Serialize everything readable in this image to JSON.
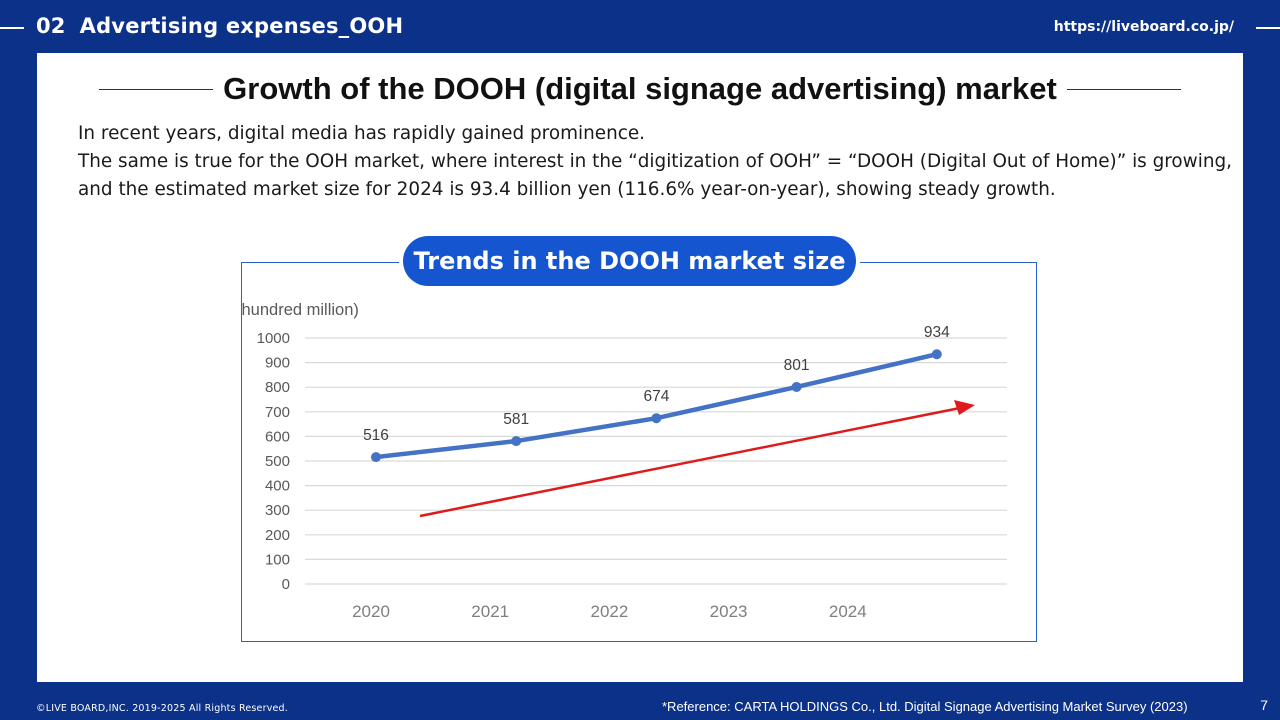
{
  "header": {
    "section_number": "02",
    "section_title": "Advertising expenses_OOH",
    "url": "https://liveboard.co.jp/"
  },
  "main": {
    "heading": "Growth of the DOOH (digital signage advertising) market",
    "paragraphs": [
      "In recent years, digital media has rapidly gained prominence.",
      "The same is true for the OOH market, where interest in the “digitization of OOH” = “DOOH (Digital Out of Home)” is growing,",
      "and the estimated market size for 2024 is 93.4 billion yen (116.6% year-on-year), showing steady growth."
    ],
    "chart_title": "Trends in the DOOH market size"
  },
  "chart_data": {
    "type": "line",
    "title": "Trends in the DOOH market size",
    "ylabel": "(hundred million)",
    "xlabel": "",
    "categories": [
      "2020",
      "2021",
      "2022",
      "2023",
      "2024"
    ],
    "series": [
      {
        "name": "DOOH market size",
        "values": [
          516,
          581,
          674,
          801,
          934
        ],
        "color": "#4472c4"
      }
    ],
    "data_labels": [
      "516",
      "581",
      "674",
      "801",
      "934"
    ],
    "yticks": [
      "0",
      "100",
      "200",
      "300",
      "400",
      "500",
      "600",
      "700",
      "800",
      "900",
      "1000"
    ],
    "ylim": [
      0,
      1000
    ],
    "grid": true,
    "annotations": [
      {
        "type": "trend-arrow",
        "color": "#e01a1a"
      }
    ]
  },
  "footer": {
    "copyright": "©LIVE BOARD,INC. 2019-2025 All Rights Reserved.",
    "reference": "*Reference: CARTA HOLDINGS Co., Ltd. Digital Signage Advertising Market Survey (2023)",
    "page_number": "7"
  },
  "colors": {
    "background": "#0b3189",
    "accent": "#1556d0",
    "line": "#4472c4",
    "trend_arrow": "#e01a1a"
  }
}
